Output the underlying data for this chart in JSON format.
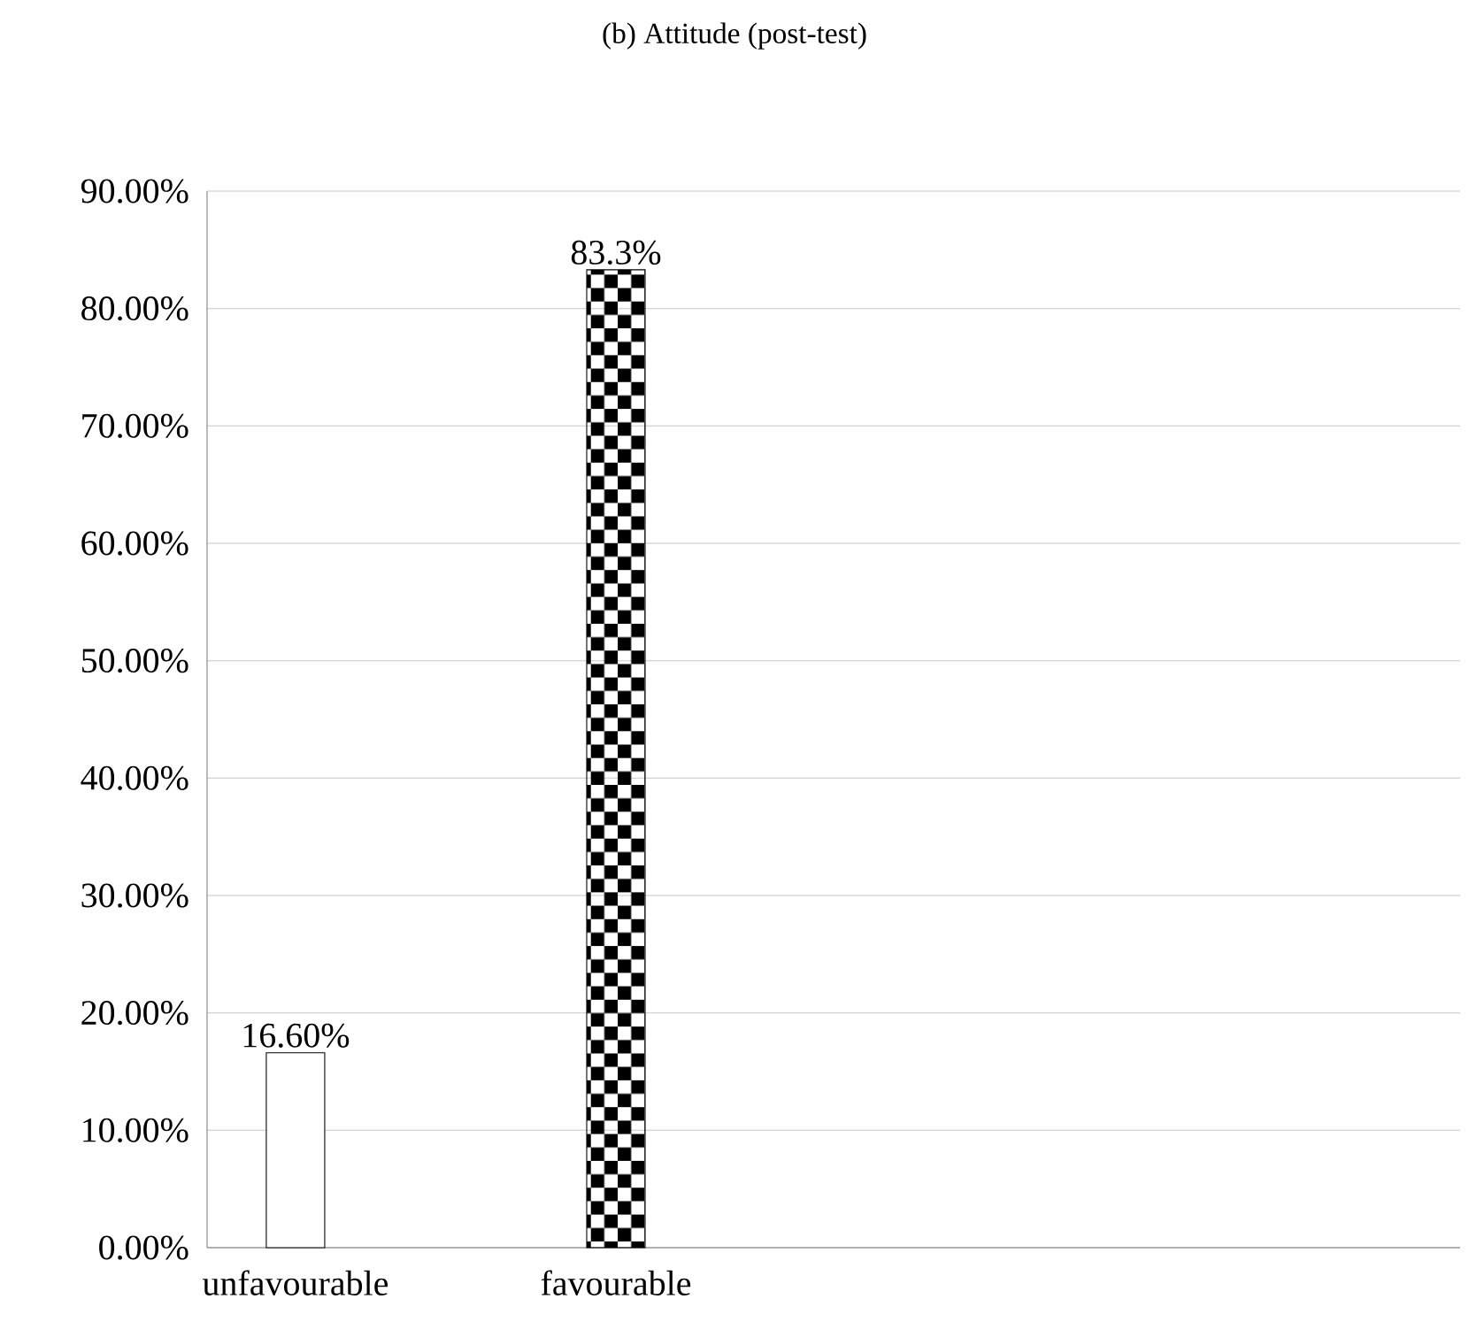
{
  "chart_data": {
    "type": "bar",
    "title": "(b) Attitude (post-test)",
    "categories": [
      "unfavourable",
      "favourable"
    ],
    "values": [
      16.6,
      83.3
    ],
    "value_labels": [
      "16.60%",
      "83.3%"
    ],
    "colors": [
      "#ffffff",
      "#000000"
    ],
    "ylim": [
      0,
      90
    ],
    "yticks": [
      {
        "value": 0,
        "label": "0.00%"
      },
      {
        "value": 10,
        "label": "10.00%"
      },
      {
        "value": 20,
        "label": "20.00%"
      },
      {
        "value": 30,
        "label": "30.00%"
      },
      {
        "value": 40,
        "label": "40.00%"
      },
      {
        "value": 50,
        "label": "50.00%"
      },
      {
        "value": 60,
        "label": "60.00%"
      },
      {
        "value": 70,
        "label": "70.00%"
      },
      {
        "value": 80,
        "label": "80.00%"
      },
      {
        "value": 90,
        "label": "90.00%"
      }
    ],
    "grid": "y"
  }
}
